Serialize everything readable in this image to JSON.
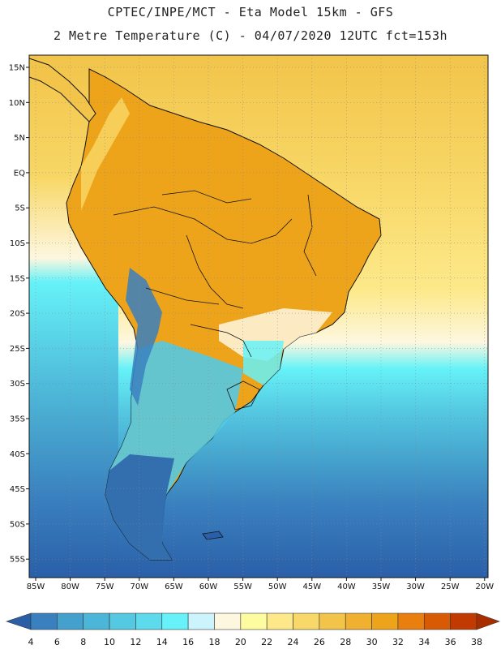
{
  "title_line1": "CPTEC/INPE/MCT -  Eta Model 15km - GFS",
  "title_line2": "2 Metre Temperature (C) - 04/07/2020 12UTC fct=153h",
  "lat_labels": [
    "15N",
    "10N",
    "5N",
    "EQ",
    "5S",
    "10S",
    "15S",
    "20S",
    "25S",
    "30S",
    "35S",
    "40S",
    "45S",
    "50S",
    "55S"
  ],
  "lon_labels": [
    "85W",
    "80W",
    "75W",
    "70W",
    "65W",
    "60W",
    "55W",
    "50W",
    "45W",
    "40W",
    "35W",
    "30W",
    "25W",
    "20W"
  ],
  "colorbar": {
    "labels": [
      "4",
      "6",
      "8",
      "10",
      "12",
      "14",
      "16",
      "18",
      "20",
      "22",
      "24",
      "26",
      "28",
      "30",
      "32",
      "34",
      "36",
      "38"
    ],
    "colors": [
      "#2a5fa8",
      "#3a80bf",
      "#44a0cc",
      "#4cb6d8",
      "#55c9e2",
      "#5ddbec",
      "#66f2f8",
      "#ccf4fc",
      "#fdf7e0",
      "#fefca0",
      "#fde98a",
      "#f8d868",
      "#f2c44a",
      "#f0b030",
      "#eea41a",
      "#e87f0e",
      "#d95a05",
      "#c03a02",
      "#a82e00"
    ]
  },
  "colors": {
    "land_outline": "#111111",
    "grid": "#888888",
    "ocean_north": "#f4c648",
    "ocean_south": "#2a5fa8",
    "amazon": "#eea41a"
  }
}
